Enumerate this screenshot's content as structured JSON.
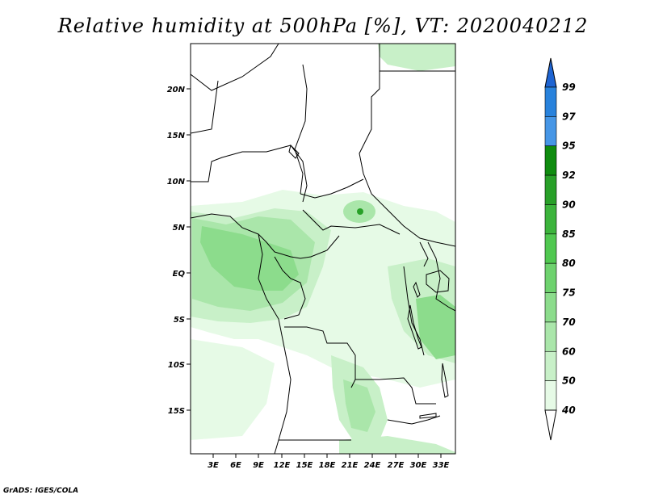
{
  "title": "Relative humidity at 500hPa [%], VT: 2020040212",
  "credit": "GrADS: IGES/COLA",
  "map": {
    "lat_labels": [
      "20N",
      "15N",
      "10N",
      "5N",
      "EQ",
      "5S",
      "10S",
      "15S"
    ],
    "lon_labels": [
      "3E",
      "6E",
      "9E",
      "12E",
      "15E",
      "18E",
      "21E",
      "24E",
      "27E",
      "30E",
      "33E"
    ]
  },
  "colorbar": {
    "levels": [
      "99",
      "97",
      "95",
      "92",
      "90",
      "85",
      "80",
      "75",
      "70",
      "60",
      "50",
      "40"
    ],
    "colors": [
      "#1e64d2",
      "#2882dc",
      "#4696e6",
      "#0f8c0f",
      "#28a028",
      "#3cb43c",
      "#50c850",
      "#6ed26e",
      "#8cdc8c",
      "#aae6aa",
      "#c8f0c8",
      "#e6fae6",
      "#ffffff"
    ]
  },
  "field_colors": {
    "c40": "#e6fae6",
    "c50": "#c8f0c8",
    "c60": "#aae6aa",
    "c70": "#8cdc8c",
    "c90": "#28a028"
  }
}
